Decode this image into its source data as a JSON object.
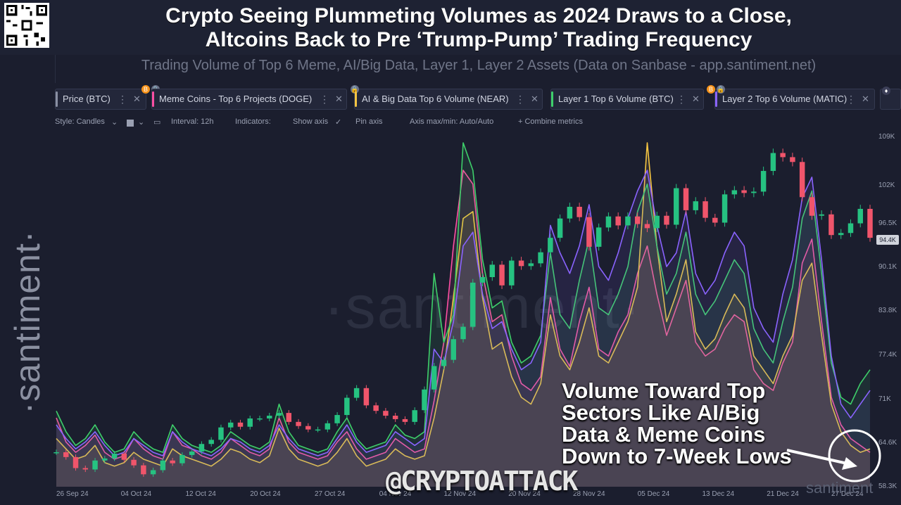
{
  "header": {
    "title_line1": "Crypto Seeing Plummeting Volumes as 2024 Draws to a Close,",
    "title_line2": "Altcoins Back to Pre ‘Trump-Pump’ Trading Frequency",
    "subtitle": "Trading Volume of Top 6 Meme, AI/Big Data, Layer 1, Layer 2 Assets (Data on Sanbase - app.santiment.net)"
  },
  "brand": {
    "side_text": "·santiment·",
    "watermark": "·santiment·",
    "watermark_small": "santiment"
  },
  "metrics": [
    {
      "label": "Price (BTC)",
      "color": "#8a90a3",
      "badge": "B",
      "badge_color": "#f7931a"
    },
    {
      "label": "Meme Coins - Top 6 Projects (DOGE)",
      "color": "#ff4fa3"
    },
    {
      "label": "AI & Big Data Top 6 Volume (NEAR)",
      "color": "#f5c542"
    },
    {
      "label": "Layer 1 Top 6 Volume (BTC)",
      "color": "#3ecf6a"
    },
    {
      "label": "Layer 2 Top 6 Volume (MATIC)",
      "color": "#8a63ff",
      "badge": "B",
      "badge_color": "#f7931a"
    }
  ],
  "toolbar": {
    "style": "Style: Candles",
    "interval": "Interval: 12h",
    "indicators": "Indicators:",
    "show_axis": "Show axis",
    "pin_axis": "Pin axis",
    "axis_minmax": "Axis max/min: Auto/Auto",
    "combine": "+ Combine metrics"
  },
  "annotation": {
    "line1": "Volume Toward Top",
    "line2": "Sectors Like AI/Big",
    "line3": "Data & Meme Coins",
    "line4": "Down to 7-Week Lows",
    "handle": "@CRYPTOATTACK"
  },
  "chart_data": {
    "type": "line",
    "title": "",
    "x_labels": [
      "26 Sep 24",
      "04 Oct 24",
      "12 Oct 24",
      "20 Oct 24",
      "27 Oct 24",
      "04 Nov 24",
      "12 Nov 24",
      "20 Nov 24",
      "28 Nov 24",
      "05 Dec 24",
      "13 Dec 24",
      "21 Dec 24",
      "27 Dec 24"
    ],
    "y_ticks": [
      "109K",
      "102K",
      "96.5K",
      "90.1K",
      "83.8K",
      "77.4K",
      "71K",
      "64.6K",
      "58.3K"
    ],
    "y_range": [
      58300,
      109000
    ],
    "last_price_label": "94.4K",
    "price_series": {
      "name": "Price (BTC)",
      "type": "candles",
      "close": [
        63300,
        62600,
        61000,
        60800,
        62100,
        62400,
        63100,
        62200,
        61400,
        60100,
        60700,
        62100,
        61700,
        62900,
        63400,
        64500,
        65100,
        66900,
        67600,
        67000,
        68200,
        68200,
        68600,
        69000,
        67700,
        67100,
        66600,
        66600,
        67500,
        68700,
        71200,
        72600,
        70100,
        69300,
        68600,
        68100,
        67700,
        69400,
        72400,
        75800,
        76700,
        79700,
        81500,
        87900,
        88700,
        90500,
        87500,
        91100,
        90300,
        90700,
        92300,
        94400,
        97200,
        98900,
        97400,
        93100,
        95900,
        97500,
        96200,
        97500,
        96400,
        95800,
        97600,
        96300,
        101600,
        98400,
        99700,
        97300,
        96600,
        100700,
        101300,
        100900,
        101100,
        104100,
        106700,
        106100,
        105400,
        100300,
        97600,
        97800,
        94800,
        95100,
        96500,
        98600,
        94400
      ],
      "color_up": "#26c281",
      "color_down": "#f0556b"
    },
    "series": [
      {
        "name": "Meme Coins - Top 6 Projects (DOGE)",
        "color": "#ff4fa3",
        "values": [
          0.2,
          0.13,
          0.1,
          0.12,
          0.15,
          0.1,
          0.08,
          0.09,
          0.14,
          0.11,
          0.09,
          0.08,
          0.16,
          0.12,
          0.11,
          0.09,
          0.08,
          0.1,
          0.14,
          0.12,
          0.1,
          0.09,
          0.11,
          0.2,
          0.13,
          0.1,
          0.09,
          0.08,
          0.09,
          0.13,
          0.16,
          0.11,
          0.08,
          0.09,
          0.1,
          0.14,
          0.12,
          0.1,
          0.11,
          0.25,
          0.42,
          0.7,
          0.92,
          0.88,
          0.62,
          0.48,
          0.5,
          0.38,
          0.3,
          0.28,
          0.32,
          0.55,
          0.4,
          0.35,
          0.48,
          0.58,
          0.4,
          0.38,
          0.45,
          0.5,
          0.62,
          0.7,
          0.56,
          0.44,
          0.52,
          0.6,
          0.42,
          0.38,
          0.4,
          0.46,
          0.5,
          0.48,
          0.34,
          0.3,
          0.28,
          0.36,
          0.42,
          0.65,
          0.72,
          0.48,
          0.26,
          0.18,
          0.14,
          0.12,
          0.1
        ]
      },
      {
        "name": "AI & Big Data Top 6 Volume (NEAR)",
        "color": "#f5c542",
        "values": [
          0.14,
          0.11,
          0.08,
          0.09,
          0.12,
          0.07,
          0.06,
          0.07,
          0.1,
          0.08,
          0.07,
          0.06,
          0.11,
          0.09,
          0.08,
          0.07,
          0.06,
          0.08,
          0.11,
          0.1,
          0.08,
          0.07,
          0.09,
          0.17,
          0.11,
          0.08,
          0.07,
          0.06,
          0.07,
          0.1,
          0.14,
          0.09,
          0.06,
          0.07,
          0.08,
          0.11,
          0.09,
          0.08,
          0.09,
          0.2,
          0.34,
          0.55,
          0.78,
          0.8,
          0.55,
          0.4,
          0.42,
          0.32,
          0.26,
          0.24,
          0.3,
          0.5,
          0.38,
          0.34,
          0.42,
          0.52,
          0.38,
          0.36,
          0.42,
          0.48,
          0.58,
          1.0,
          0.7,
          0.48,
          0.56,
          0.66,
          0.45,
          0.4,
          0.43,
          0.5,
          0.56,
          0.52,
          0.38,
          0.34,
          0.3,
          0.38,
          0.44,
          0.6,
          0.65,
          0.44,
          0.24,
          0.16,
          0.12,
          0.1,
          0.11
        ]
      },
      {
        "name": "Layer 1 Top 6 Volume (BTC)",
        "color": "#3ecf6a",
        "values": [
          0.22,
          0.16,
          0.12,
          0.14,
          0.18,
          0.13,
          0.1,
          0.11,
          0.16,
          0.13,
          0.11,
          0.1,
          0.18,
          0.14,
          0.12,
          0.11,
          0.1,
          0.12,
          0.16,
          0.14,
          0.12,
          0.11,
          0.13,
          0.24,
          0.16,
          0.12,
          0.11,
          0.1,
          0.11,
          0.16,
          0.2,
          0.14,
          0.11,
          0.12,
          0.13,
          0.18,
          0.15,
          0.14,
          0.16,
          0.62,
          0.42,
          0.5,
          1.0,
          0.92,
          0.66,
          0.52,
          0.54,
          0.42,
          0.36,
          0.38,
          0.44,
          0.68,
          0.5,
          0.46,
          0.6,
          0.72,
          0.52,
          0.5,
          0.56,
          0.64,
          0.8,
          0.88,
          0.7,
          0.56,
          0.62,
          0.74,
          0.56,
          0.5,
          0.54,
          0.6,
          0.66,
          0.62,
          0.46,
          0.4,
          0.36,
          0.48,
          0.58,
          0.78,
          0.86,
          0.62,
          0.36,
          0.26,
          0.24,
          0.3,
          0.34
        ]
      },
      {
        "name": "Layer 2 Top 6 Volume (MATIC)",
        "color": "#8a63ff",
        "values": [
          0.18,
          0.14,
          0.11,
          0.13,
          0.16,
          0.12,
          0.09,
          0.1,
          0.14,
          0.12,
          0.1,
          0.09,
          0.16,
          0.13,
          0.11,
          0.1,
          0.09,
          0.11,
          0.14,
          0.13,
          0.11,
          0.1,
          0.12,
          0.18,
          0.14,
          0.11,
          0.1,
          0.09,
          0.1,
          0.14,
          0.18,
          0.13,
          0.1,
          0.11,
          0.12,
          0.16,
          0.14,
          0.12,
          0.14,
          0.4,
          0.36,
          0.48,
          0.7,
          0.74,
          0.56,
          0.46,
          0.48,
          0.4,
          0.34,
          0.36,
          0.42,
          0.76,
          0.68,
          0.62,
          0.7,
          0.82,
          0.64,
          0.6,
          0.68,
          0.78,
          0.86,
          0.92,
          0.76,
          0.64,
          0.68,
          0.8,
          0.62,
          0.56,
          0.6,
          0.68,
          0.74,
          0.7,
          0.52,
          0.46,
          0.42,
          0.56,
          0.66,
          0.84,
          0.9,
          0.66,
          0.38,
          0.24,
          0.2,
          0.24,
          0.28
        ]
      }
    ]
  }
}
